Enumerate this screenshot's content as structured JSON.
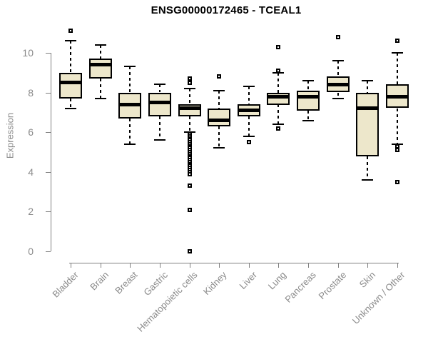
{
  "page": {
    "background": "#ffffff"
  },
  "chart_data": {
    "type": "boxplot",
    "title": "ENSG00000172465 - TCEAL1",
    "ylabel": "Expression",
    "xlabel": "",
    "ylim": [
      0,
      10
    ],
    "yticks": [
      0,
      2,
      4,
      6,
      8,
      10
    ],
    "grid": false,
    "legend": "none",
    "categories": [
      "Bladder",
      "Brain",
      "Breast",
      "Gastric",
      "Hematopoietic cells",
      "Kidney",
      "Liver",
      "Lung",
      "Pancreas",
      "Prostate",
      "Skin",
      "Unknown / Other"
    ],
    "series": [
      {
        "name": "Bladder",
        "whisker_low": 7.2,
        "q1": 7.7,
        "median": 8.5,
        "q3": 9.0,
        "whisker_high": 10.6,
        "outliers": [
          11.1
        ]
      },
      {
        "name": "Brain",
        "whisker_low": 7.7,
        "q1": 8.7,
        "median": 9.4,
        "q3": 9.7,
        "whisker_high": 10.4,
        "outliers": []
      },
      {
        "name": "Breast",
        "whisker_low": 5.4,
        "q1": 6.7,
        "median": 7.4,
        "q3": 8.0,
        "whisker_high": 9.3,
        "outliers": []
      },
      {
        "name": "Gastric",
        "whisker_low": 5.6,
        "q1": 6.8,
        "median": 7.5,
        "q3": 8.0,
        "whisker_high": 8.4,
        "outliers": []
      },
      {
        "name": "Hematopoietic cells",
        "whisker_low": 6.0,
        "q1": 6.8,
        "median": 7.2,
        "q3": 7.4,
        "whisker_high": 8.2,
        "outliers": [
          8.7,
          8.5,
          5.9,
          5.8,
          5.7,
          5.6,
          5.5,
          5.4,
          5.3,
          5.2,
          5.1,
          5.0,
          4.9,
          4.8,
          4.7,
          4.6,
          4.5,
          4.4,
          4.3,
          4.2,
          4.1,
          4.0,
          3.9,
          3.3,
          2.1,
          0.0
        ]
      },
      {
        "name": "Kidney",
        "whisker_low": 5.2,
        "q1": 6.3,
        "median": 6.6,
        "q3": 7.2,
        "whisker_high": 8.1,
        "outliers": [
          8.8
        ]
      },
      {
        "name": "Liver",
        "whisker_low": 5.8,
        "q1": 6.8,
        "median": 7.1,
        "q3": 7.4,
        "whisker_high": 8.3,
        "outliers": [
          5.5
        ]
      },
      {
        "name": "Lung",
        "whisker_low": 6.4,
        "q1": 7.4,
        "median": 7.8,
        "q3": 8.0,
        "whisker_high": 9.0,
        "outliers": [
          10.3,
          9.1,
          6.2
        ]
      },
      {
        "name": "Pancreas",
        "whisker_low": 6.6,
        "q1": 7.1,
        "median": 7.8,
        "q3": 8.1,
        "whisker_high": 8.6,
        "outliers": []
      },
      {
        "name": "Prostate",
        "whisker_low": 7.7,
        "q1": 8.0,
        "median": 8.4,
        "q3": 8.8,
        "whisker_high": 9.6,
        "outliers": [
          10.8
        ]
      },
      {
        "name": "Skin",
        "whisker_low": 3.6,
        "q1": 4.8,
        "median": 7.2,
        "q3": 8.0,
        "whisker_high": 8.6,
        "outliers": []
      },
      {
        "name": "Unknown / Other",
        "whisker_low": 5.4,
        "q1": 7.2,
        "median": 7.8,
        "q3": 8.4,
        "whisker_high": 10.0,
        "outliers": [
          10.6,
          5.3,
          5.1,
          3.5
        ]
      }
    ],
    "colors": {
      "box_fill": "#EDE7CB",
      "box_stroke": "#000000",
      "median": "#000000",
      "whisker": "#000000",
      "outlier_stroke": "#000000",
      "outlier_fill": "#ffffff",
      "axis": "#808080",
      "tick_label": "#8a8a8a",
      "title": "#000000"
    }
  }
}
